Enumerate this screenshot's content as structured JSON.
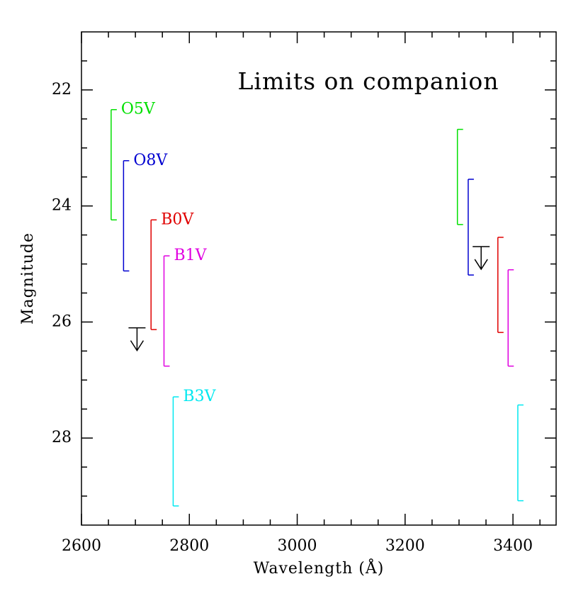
{
  "chart_data": {
    "type": "range-bar",
    "title": "Limits on companion",
    "x_label": "Wavelength (Å)",
    "y_label": "Magnitude",
    "xlim": [
      2600,
      3480
    ],
    "ylim": [
      21,
      29.5
    ],
    "y_inverted": true,
    "xticks": [
      2600,
      2800,
      3000,
      3200,
      3400
    ],
    "x_minor_ticks": [
      2650,
      2700,
      2750,
      2850,
      2900,
      2950,
      3050,
      3100,
      3150,
      3250,
      3300,
      3350,
      3450
    ],
    "yticks": [
      22,
      24,
      26,
      28
    ],
    "y_minor_ticks": [
      21.5,
      22.5,
      23,
      23.5,
      24.5,
      25,
      25.5,
      26.5,
      27,
      27.5,
      28.5,
      29
    ],
    "series": [
      {
        "name": "O5V",
        "color": "#00e000",
        "x": [
          2655,
          3297
        ],
        "low": [
          22.34,
          22.68
        ],
        "high": [
          24.24,
          24.32
        ]
      },
      {
        "name": "O8V",
        "color": "#0000d0",
        "x": [
          2678,
          3317
        ],
        "low": [
          23.22,
          23.54
        ],
        "high": [
          25.12,
          25.19
        ]
      },
      {
        "name": "B0V",
        "color": "#e00000",
        "x": [
          2729,
          3372
        ],
        "low": [
          24.24,
          24.54
        ],
        "high": [
          26.13,
          26.18
        ]
      },
      {
        "name": "B1V",
        "color": "#e000e0",
        "x": [
          2753,
          3391
        ],
        "low": [
          24.86,
          25.1
        ],
        "high": [
          26.76,
          26.76
        ]
      },
      {
        "name": "B3V",
        "color": "#00e8f0",
        "x": [
          2770,
          3409
        ],
        "low": [
          27.29,
          27.43
        ],
        "high": [
          29.17,
          29.08
        ]
      }
    ],
    "limits": {
      "color": "#000000",
      "x": [
        2703,
        3341
      ],
      "values": [
        26.1,
        24.7
      ]
    }
  }
}
